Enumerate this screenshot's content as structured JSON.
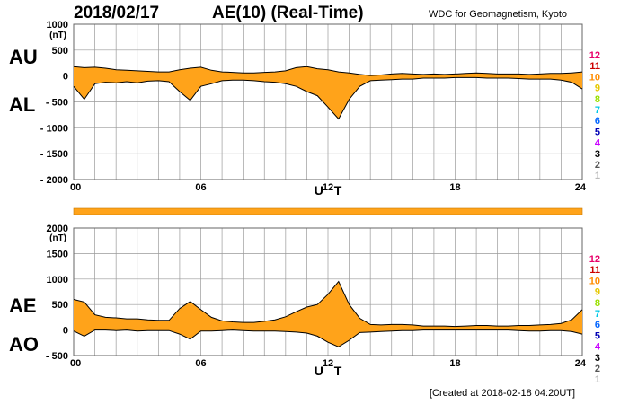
{
  "header": {
    "date": "2018/02/17",
    "title": "AE(10) (Real-Time)",
    "credit": "WDC for Geomagnetism, Kyoto"
  },
  "footer": {
    "created": "[Created at 2018-02-18 04:20UT]"
  },
  "colors": {
    "fill": "#ffa31a",
    "line": "#000000",
    "grid": "#9a9a9a",
    "bar": "#ffa31a"
  },
  "legend": {
    "items": [
      "12",
      "11",
      "10",
      "9",
      "8",
      "7",
      "6",
      "5",
      "4",
      "3",
      "2",
      "1"
    ],
    "colors": [
      "#e8006a",
      "#cc0000",
      "#ff8c00",
      "#e6c800",
      "#99e000",
      "#00c8e6",
      "#0064ff",
      "#0000b4",
      "#c800ff",
      "#000000",
      "#555555",
      "#bbbbbb"
    ]
  },
  "chart_data": [
    {
      "type": "area",
      "upper_label": "AU",
      "lower_label": "AL",
      "unit": "(nT)",
      "xlabel": "U T",
      "xlim": [
        0,
        24
      ],
      "xticks": [
        "00",
        "06",
        "12",
        "18",
        "24"
      ],
      "ylim": [
        -2000,
        1000
      ],
      "yticks": [
        "1000",
        "500",
        "0",
        "- 500",
        "- 1000",
        "- 1500",
        "- 2000"
      ],
      "x": [
        0,
        0.5,
        1,
        1.5,
        2,
        2.5,
        3,
        3.5,
        4,
        4.5,
        5,
        5.5,
        6,
        6.5,
        7,
        7.5,
        8,
        8.5,
        9,
        9.5,
        10,
        10.5,
        11,
        11.5,
        12,
        12.5,
        13,
        13.5,
        14,
        14.5,
        15,
        15.5,
        16,
        16.5,
        17,
        17.5,
        18,
        18.5,
        19,
        19.5,
        20,
        20.5,
        21,
        21.5,
        22,
        22.5,
        23,
        23.5,
        24
      ],
      "series": [
        {
          "name": "AU",
          "values": [
            180,
            160,
            170,
            150,
            120,
            110,
            100,
            90,
            80,
            80,
            120,
            150,
            170,
            110,
            80,
            70,
            60,
            60,
            70,
            80,
            100,
            160,
            180,
            140,
            120,
            80,
            60,
            30,
            10,
            20,
            40,
            50,
            40,
            30,
            40,
            30,
            40,
            50,
            60,
            50,
            40,
            40,
            40,
            30,
            40,
            50,
            50,
            60,
            80
          ]
        },
        {
          "name": "AL",
          "values": [
            -200,
            -450,
            -150,
            -120,
            -130,
            -110,
            -130,
            -100,
            -90,
            -110,
            -300,
            -470,
            -200,
            -150,
            -90,
            -80,
            -80,
            -90,
            -110,
            -120,
            -150,
            -200,
            -300,
            -380,
            -600,
            -830,
            -450,
            -200,
            -90,
            -80,
            -70,
            -60,
            -60,
            -40,
            -40,
            -40,
            -30,
            -30,
            -30,
            -40,
            -40,
            -40,
            -50,
            -60,
            -60,
            -60,
            -80,
            -120,
            -250
          ]
        }
      ]
    },
    {
      "type": "area",
      "upper_label": "AE",
      "lower_label": "AO",
      "unit": "(nT)",
      "xlabel": "U T",
      "xlim": [
        0,
        24
      ],
      "xticks": [
        "00",
        "06",
        "12",
        "18",
        "24"
      ],
      "ylim": [
        -500,
        2000
      ],
      "yticks": [
        "2000",
        "1500",
        "1000",
        "500",
        "0",
        "- 500"
      ],
      "x": [
        0,
        0.5,
        1,
        1.5,
        2,
        2.5,
        3,
        3.5,
        4,
        4.5,
        5,
        5.5,
        6,
        6.5,
        7,
        7.5,
        8,
        8.5,
        9,
        9.5,
        10,
        10.5,
        11,
        11.5,
        12,
        12.5,
        13,
        13.5,
        14,
        14.5,
        15,
        15.5,
        16,
        16.5,
        17,
        17.5,
        18,
        18.5,
        19,
        19.5,
        20,
        20.5,
        21,
        21.5,
        22,
        22.5,
        23,
        23.5,
        24
      ],
      "series": [
        {
          "name": "AE",
          "values": [
            600,
            550,
            300,
            250,
            240,
            220,
            220,
            200,
            190,
            190,
            420,
            560,
            400,
            250,
            180,
            160,
            150,
            150,
            170,
            200,
            260,
            360,
            450,
            500,
            700,
            950,
            500,
            230,
            110,
            100,
            110,
            110,
            100,
            80,
            80,
            80,
            70,
            80,
            90,
            90,
            80,
            80,
            90,
            90,
            100,
            110,
            130,
            200,
            400
          ]
        },
        {
          "name": "AO",
          "values": [
            -20,
            -120,
            0,
            0,
            -10,
            0,
            -20,
            -10,
            -10,
            -10,
            -80,
            -180,
            -20,
            -20,
            -10,
            0,
            -10,
            -20,
            -20,
            -20,
            -30,
            -40,
            -60,
            -120,
            -240,
            -330,
            -200,
            -50,
            -40,
            -30,
            -20,
            -10,
            -10,
            0,
            0,
            0,
            0,
            0,
            0,
            0,
            0,
            0,
            -10,
            -20,
            -20,
            -10,
            -10,
            -30,
            -80
          ]
        }
      ]
    }
  ]
}
